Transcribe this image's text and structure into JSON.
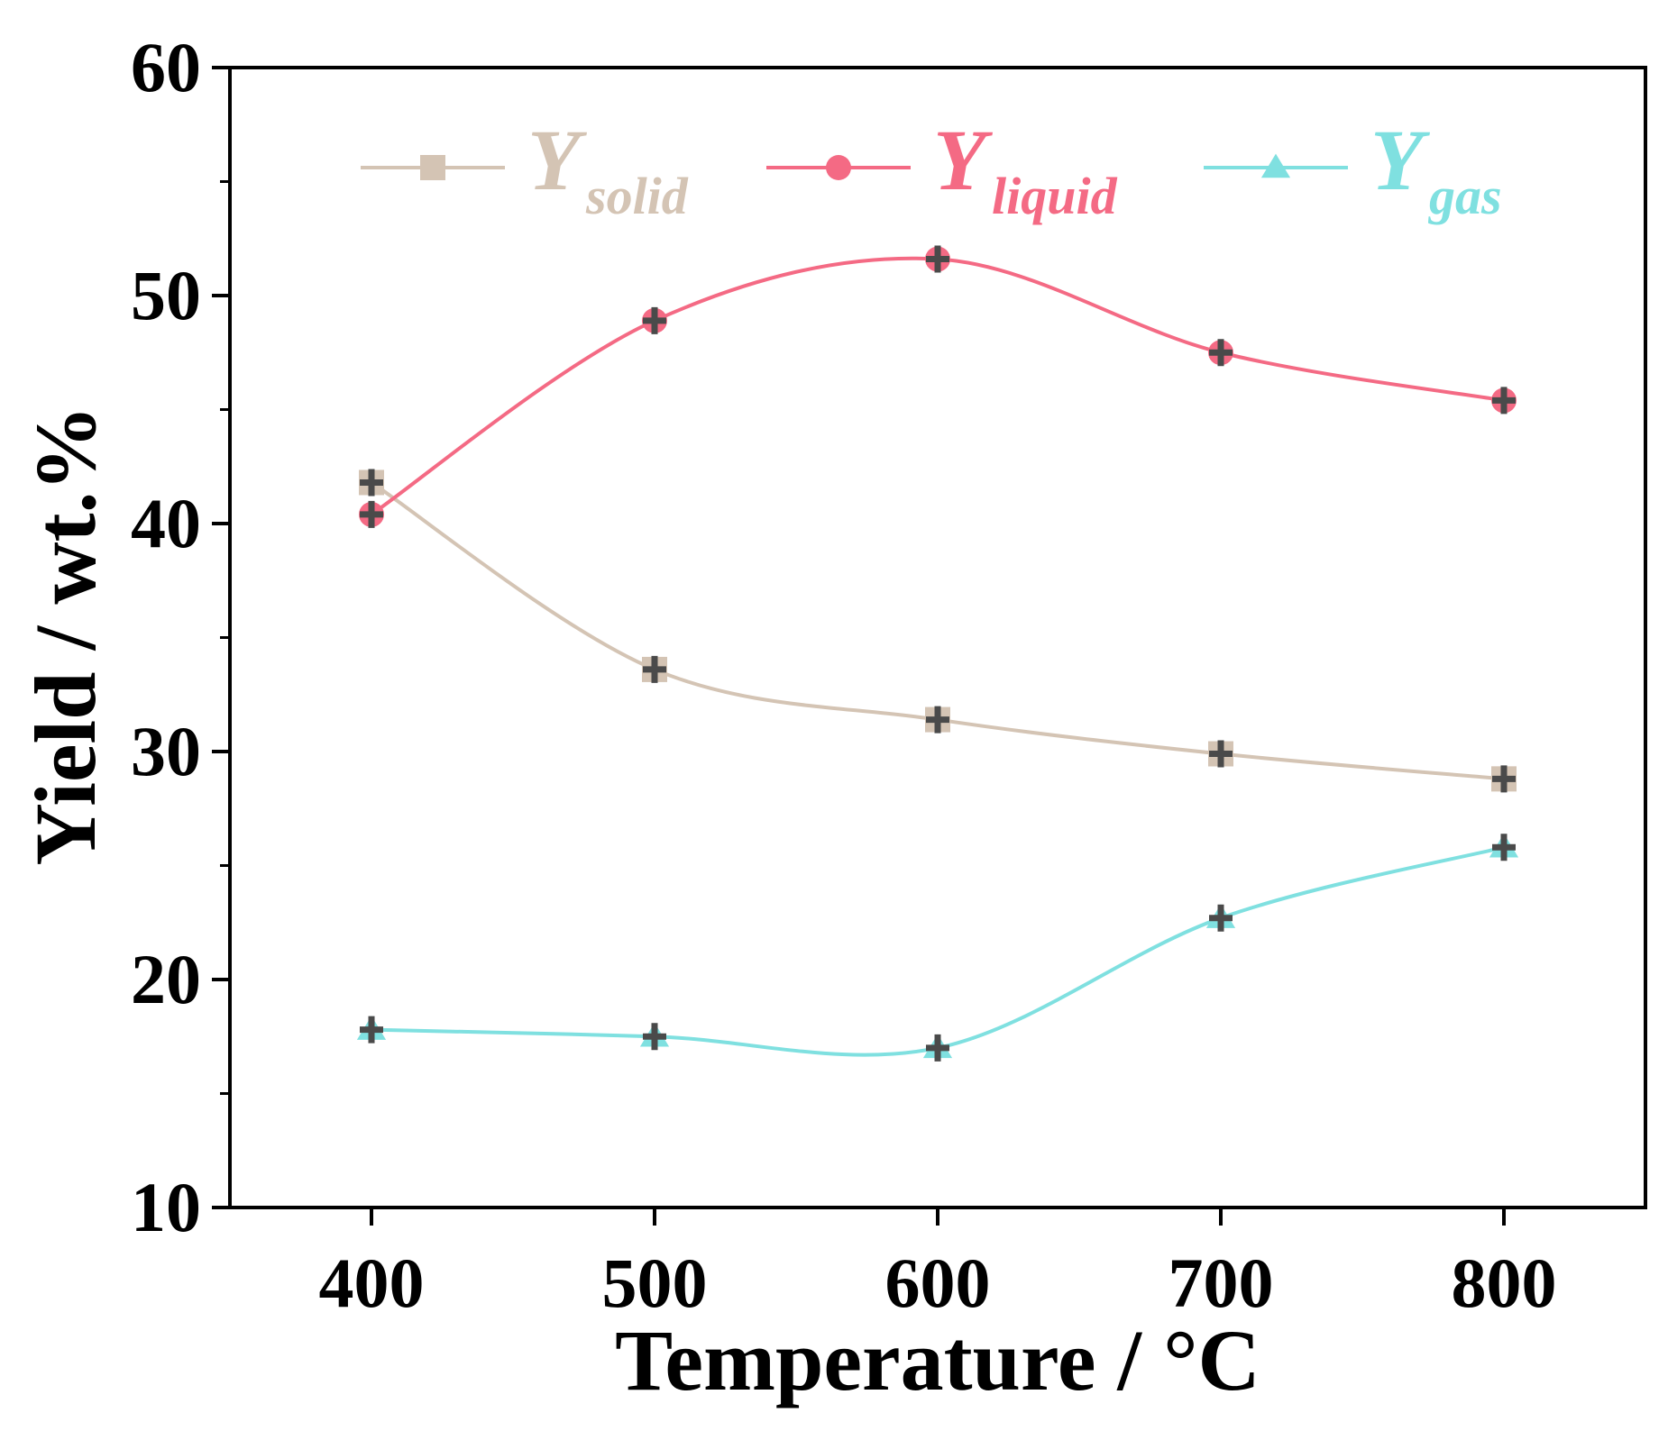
{
  "chart_data": {
    "type": "line",
    "xlabel": "Temperature / °C",
    "ylabel": "Yield / wt.%",
    "x": [
      400,
      500,
      600,
      700,
      800
    ],
    "xlim": [
      350,
      850
    ],
    "ylim": [
      10,
      60
    ],
    "xticks": [
      400,
      500,
      600,
      700,
      800
    ],
    "yticks": [
      10,
      20,
      30,
      40,
      50,
      60
    ],
    "legend_position": "top",
    "series": [
      {
        "name": "Y",
        "subscript": "solid",
        "marker": "square",
        "color": "#d4c4b4",
        "values": [
          41.8,
          33.6,
          31.4,
          29.9,
          28.8
        ]
      },
      {
        "name": "Y",
        "subscript": "liquid",
        "marker": "circle",
        "color": "#f46a84",
        "values": [
          40.4,
          48.9,
          51.6,
          47.5,
          45.4
        ]
      },
      {
        "name": "Y",
        "subscript": "gas",
        "marker": "triangle",
        "color": "#7fe0e0",
        "values": [
          17.8,
          17.5,
          17.0,
          22.7,
          25.8
        ]
      }
    ]
  }
}
